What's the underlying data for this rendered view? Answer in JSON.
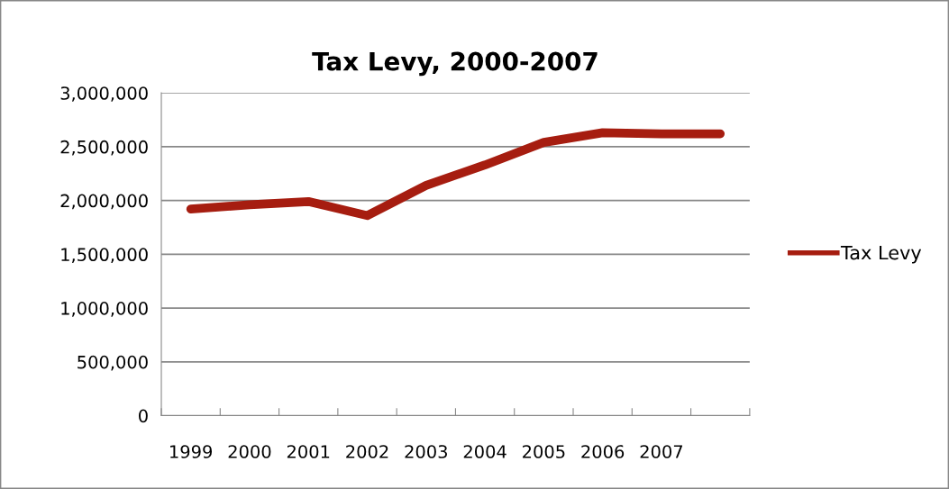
{
  "chart_data": {
    "type": "line",
    "title": "Tax Levy, 2000-2007",
    "categories": [
      "1999",
      "2000",
      "2001",
      "2002",
      "2003",
      "2004",
      "2005",
      "2006",
      "2007",
      null
    ],
    "series": [
      {
        "name": "Tax Levy",
        "color": "#a61d10",
        "values": [
          1920000,
          1960000,
          1990000,
          1860000,
          2140000,
          2330000,
          2540000,
          2630000,
          2620000,
          2620000
        ]
      }
    ],
    "ylim": [
      0,
      3000000
    ],
    "yticks": [
      {
        "value": 0,
        "label": "0"
      },
      {
        "value": 500000,
        "label": "500,000"
      },
      {
        "value": 1000000,
        "label": "1,000,000"
      },
      {
        "value": 1500000,
        "label": "1,500,000"
      },
      {
        "value": 2000000,
        "label": "2,000,000"
      },
      {
        "value": 2500000,
        "label": "2,500,000"
      },
      {
        "value": 3000000,
        "label": "3,000,000"
      }
    ],
    "grid": "y",
    "legend": "right",
    "marker": "none",
    "line_style": "solid"
  }
}
